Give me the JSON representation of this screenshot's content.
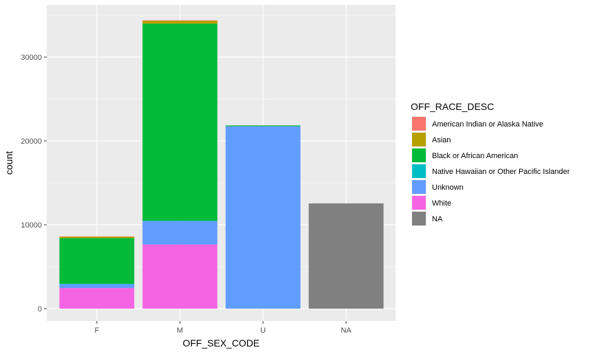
{
  "chart_data": {
    "type": "bar",
    "stacked": true,
    "title": "",
    "xlabel": "OFF_SEX_CODE",
    "ylabel": "count",
    "categories": [
      "F",
      "M",
      "U",
      "NA"
    ],
    "ylim": [
      0,
      36000
    ],
    "yticks": [
      0,
      10000,
      20000,
      30000
    ],
    "ytick_labels": [
      "0",
      "10000",
      "20000",
      "30000"
    ],
    "grid": true,
    "legend_position": "right",
    "legend_title": "OFF_RACE_DESC",
    "series": [
      {
        "name": "American Indian or Alaska Native",
        "color": "#F8766D",
        "values": [
          20,
          40,
          0,
          0
        ]
      },
      {
        "name": "Asian",
        "color": "#B79F00",
        "values": [
          180,
          360,
          0,
          0
        ]
      },
      {
        "name": "Black or African American",
        "color": "#00BA38",
        "values": [
          5450,
          23500,
          100,
          0
        ]
      },
      {
        "name": "Native Hawaiian or Other Pacific Islander",
        "color": "#00BFC4",
        "values": [
          10,
          30,
          0,
          0
        ]
      },
      {
        "name": "Unknown",
        "color": "#619CFF",
        "values": [
          500,
          2800,
          21750,
          0
        ]
      },
      {
        "name": "White",
        "color": "#F564E3",
        "values": [
          2450,
          7650,
          0,
          0
        ]
      },
      {
        "name": "NA",
        "color": "#808080",
        "values": [
          0,
          0,
          0,
          12550
        ]
      }
    ]
  }
}
